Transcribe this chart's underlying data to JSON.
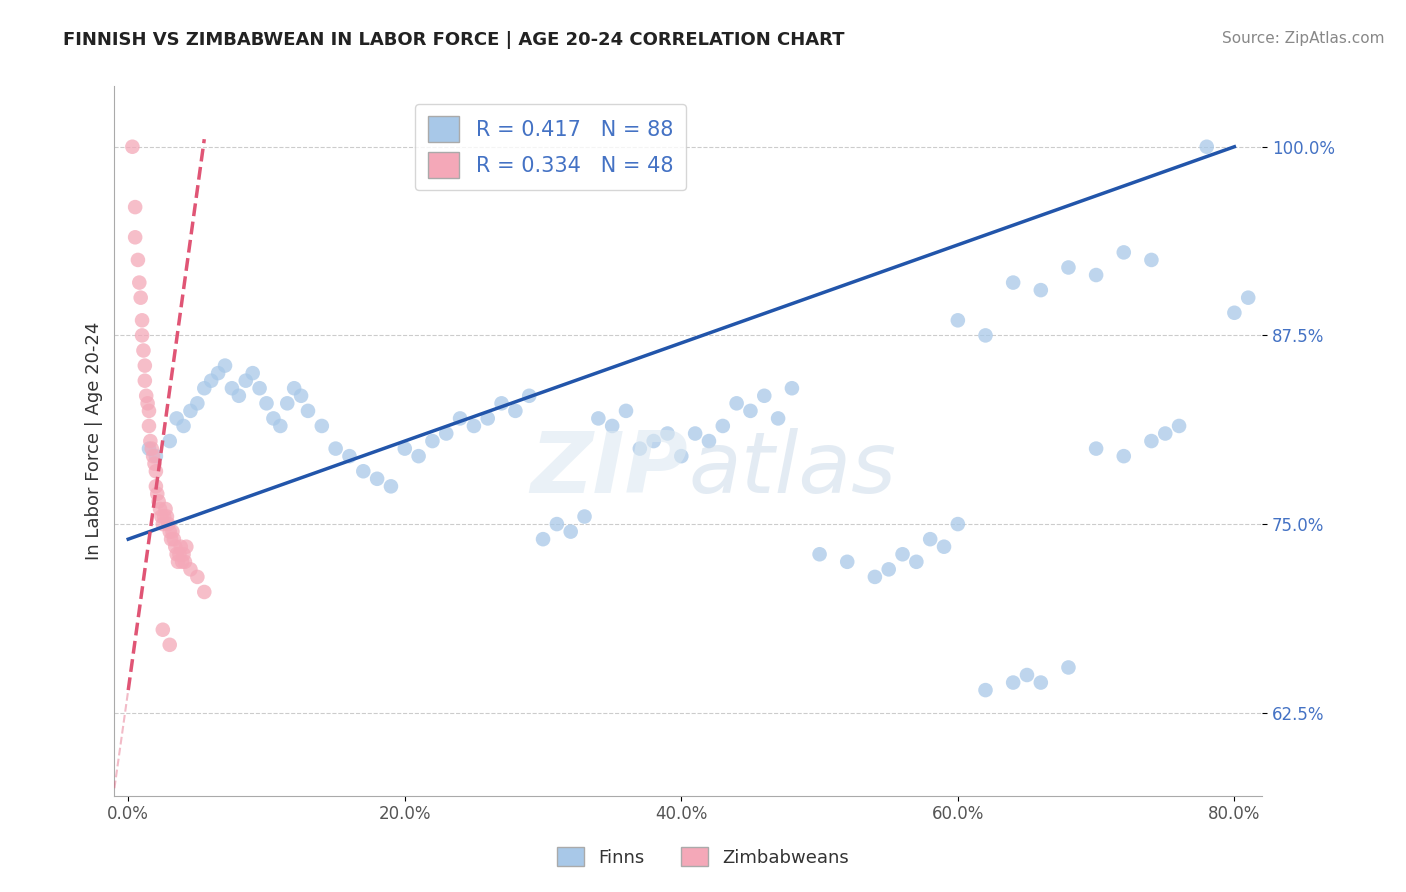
{
  "title": "FINNISH VS ZIMBABWEAN IN LABOR FORCE | AGE 20-24 CORRELATION CHART",
  "source": "Source: ZipAtlas.com",
  "ylabel": "In Labor Force | Age 20-24",
  "x_tick_labels": [
    "0.0%",
    "20.0%",
    "40.0%",
    "60.0%",
    "80.0%"
  ],
  "x_tick_vals": [
    0.0,
    20.0,
    40.0,
    60.0,
    80.0
  ],
  "y_tick_labels": [
    "62.5%",
    "75.0%",
    "87.5%",
    "100.0%"
  ],
  "y_tick_vals": [
    62.5,
    75.0,
    87.5,
    100.0
  ],
  "xlim": [
    -1.0,
    82.0
  ],
  "ylim": [
    57.0,
    104.0
  ],
  "R_blue": 0.417,
  "N_blue": 88,
  "R_pink": 0.334,
  "N_pink": 48,
  "blue_color": "#a8c8e8",
  "pink_color": "#f4a8b8",
  "blue_line_color": "#2255aa",
  "pink_line_color": "#e05575",
  "legend_label_blue": "Finns",
  "legend_label_pink": "Zimbabweans",
  "watermark": "ZIPatlas",
  "finns_x": [
    1.5,
    2.0,
    3.0,
    3.5,
    4.0,
    4.5,
    5.0,
    5.5,
    6.0,
    6.5,
    7.0,
    7.5,
    8.0,
    8.5,
    9.0,
    9.5,
    10.0,
    10.5,
    11.0,
    11.5,
    12.0,
    12.5,
    13.0,
    14.0,
    15.0,
    16.0,
    17.0,
    18.0,
    19.0,
    20.0,
    21.0,
    22.0,
    23.0,
    24.0,
    25.0,
    26.0,
    27.0,
    28.0,
    29.0,
    30.0,
    31.0,
    32.0,
    33.0,
    34.0,
    35.0,
    36.0,
    37.0,
    38.0,
    39.0,
    40.0,
    41.0,
    42.0,
    43.0,
    44.0,
    45.0,
    46.0,
    47.0,
    48.0,
    50.0,
    52.0,
    54.0,
    55.0,
    56.0,
    57.0,
    58.0,
    59.0,
    60.0,
    62.0,
    64.0,
    65.0,
    66.0,
    68.0,
    70.0,
    72.0,
    74.0,
    75.0,
    76.0,
    78.0,
    80.0,
    81.0,
    60.0,
    62.0,
    64.0,
    66.0,
    68.0,
    70.0,
    72.0,
    74.0
  ],
  "finns_y": [
    80.0,
    79.5,
    80.5,
    82.0,
    81.5,
    82.5,
    83.0,
    84.0,
    84.5,
    85.0,
    85.5,
    84.0,
    83.5,
    84.5,
    85.0,
    84.0,
    83.0,
    82.0,
    81.5,
    83.0,
    84.0,
    83.5,
    82.5,
    81.5,
    80.0,
    79.5,
    78.5,
    78.0,
    77.5,
    80.0,
    79.5,
    80.5,
    81.0,
    82.0,
    81.5,
    82.0,
    83.0,
    82.5,
    83.5,
    74.0,
    75.0,
    74.5,
    75.5,
    82.0,
    81.5,
    82.5,
    80.0,
    80.5,
    81.0,
    79.5,
    81.0,
    80.5,
    81.5,
    83.0,
    82.5,
    83.5,
    82.0,
    84.0,
    73.0,
    72.5,
    71.5,
    72.0,
    73.0,
    72.5,
    74.0,
    73.5,
    75.0,
    64.0,
    64.5,
    65.0,
    64.5,
    65.5,
    80.0,
    79.5,
    80.5,
    81.0,
    81.5,
    100.0,
    89.0,
    90.0,
    88.5,
    87.5,
    91.0,
    90.5,
    92.0,
    91.5,
    93.0,
    92.5
  ],
  "zimbabweans_x": [
    0.3,
    0.5,
    0.5,
    0.7,
    0.8,
    0.9,
    1.0,
    1.0,
    1.1,
    1.2,
    1.2,
    1.3,
    1.4,
    1.5,
    1.5,
    1.6,
    1.7,
    1.8,
    1.9,
    2.0,
    2.0,
    2.1,
    2.2,
    2.3,
    2.4,
    2.5,
    2.6,
    2.7,
    2.8,
    2.9,
    3.0,
    3.1,
    3.2,
    3.3,
    3.4,
    3.5,
    3.6,
    3.7,
    3.8,
    3.9,
    4.0,
    4.1,
    4.2,
    4.5,
    5.0,
    5.5,
    2.5,
    3.0
  ],
  "zimbabweans_y": [
    100.0,
    96.0,
    94.0,
    92.5,
    91.0,
    90.0,
    88.5,
    87.5,
    86.5,
    85.5,
    84.5,
    83.5,
    83.0,
    82.5,
    81.5,
    80.5,
    80.0,
    79.5,
    79.0,
    78.5,
    77.5,
    77.0,
    76.5,
    76.0,
    75.5,
    75.0,
    75.5,
    76.0,
    75.5,
    75.0,
    74.5,
    74.0,
    74.5,
    74.0,
    73.5,
    73.0,
    72.5,
    73.0,
    73.5,
    72.5,
    73.0,
    72.5,
    73.5,
    72.0,
    71.5,
    70.5,
    68.0,
    67.0
  ],
  "blue_line_x0": 0.0,
  "blue_line_y0": 74.0,
  "blue_line_x1": 80.0,
  "blue_line_y1": 100.0,
  "pink_line_x0": 0.0,
  "pink_line_y0": 64.0,
  "pink_line_x1": 5.5,
  "pink_line_y1": 100.5
}
